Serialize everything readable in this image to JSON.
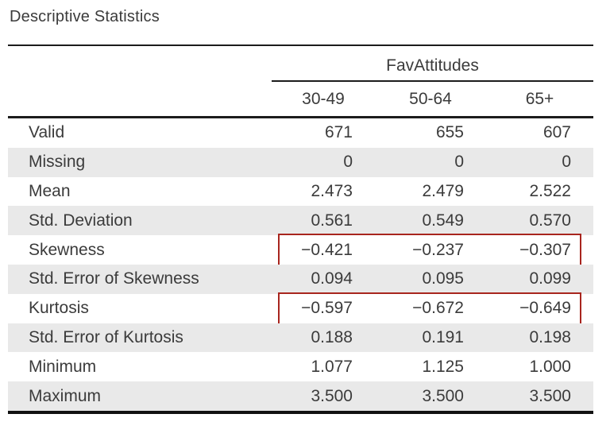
{
  "chart_data": {
    "type": "table",
    "title": "Descriptive Statistics",
    "group_header": "FavAttitudes",
    "columns": [
      "30-49",
      "50-64",
      "65+"
    ],
    "rows": [
      {
        "label": "Valid",
        "values": [
          "671",
          "655",
          "607"
        ],
        "highlighted": false
      },
      {
        "label": "Missing",
        "values": [
          "0",
          "0",
          "0"
        ],
        "highlighted": false
      },
      {
        "label": "Mean",
        "values": [
          "2.473",
          "2.479",
          "2.522"
        ],
        "highlighted": false
      },
      {
        "label": "Std. Deviation",
        "values": [
          "0.561",
          "0.549",
          "0.570"
        ],
        "highlighted": false
      },
      {
        "label": "Skewness",
        "values": [
          "−0.421",
          "−0.237",
          "−0.307"
        ],
        "highlighted": true
      },
      {
        "label": "Std. Error of Skewness",
        "values": [
          "0.094",
          "0.095",
          "0.099"
        ],
        "highlighted": false
      },
      {
        "label": "Kurtosis",
        "values": [
          "−0.597",
          "−0.672",
          "−0.649"
        ],
        "highlighted": true
      },
      {
        "label": "Std. Error of Kurtosis",
        "values": [
          "0.188",
          "0.191",
          "0.198"
        ],
        "highlighted": false
      },
      {
        "label": "Minimum",
        "values": [
          "1.077",
          "1.125",
          "1.000"
        ],
        "highlighted": false
      },
      {
        "label": "Maximum",
        "values": [
          "3.500",
          "3.500",
          "3.500"
        ],
        "highlighted": false
      }
    ],
    "highlighted_rows": [
      "Skewness",
      "Kurtosis"
    ],
    "colors": {
      "highlight_box": "#a8251e",
      "zebra_row": "#e9e9e9",
      "rule": "#1c1c1c",
      "text": "#3b3b3b"
    }
  }
}
